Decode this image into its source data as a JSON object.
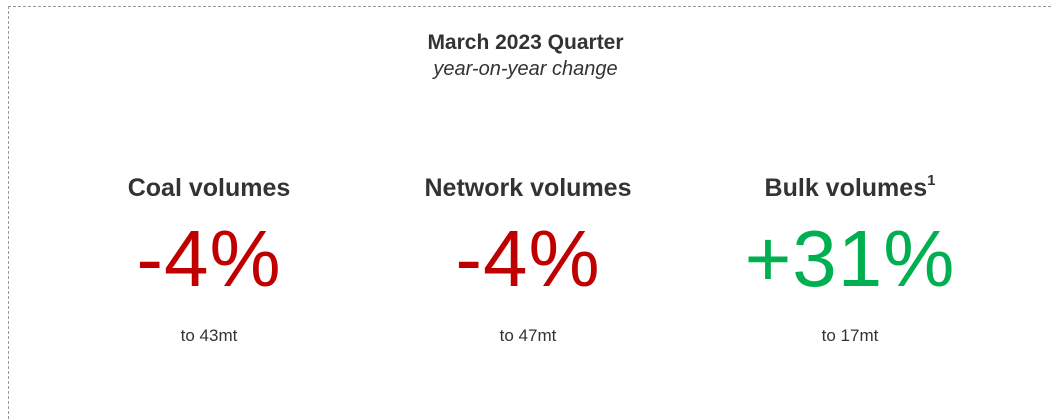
{
  "header": {
    "title": "March 2023 Quarter",
    "subtitle": "year-on-year change"
  },
  "metrics": [
    {
      "label": "Coal volumes",
      "superscript": "",
      "value": "-4%",
      "detail": "to 43mt",
      "color": "#c00000"
    },
    {
      "label": "Network volumes",
      "superscript": "",
      "value": "-4%",
      "detail": "to 47mt",
      "color": "#c00000"
    },
    {
      "label": "Bulk volumes",
      "superscript": "1",
      "value": "+31%",
      "detail": "to 17mt",
      "color": "#00b050"
    }
  ],
  "colors": {
    "negative": "#c00000",
    "positive": "#00b050",
    "text": "#333333",
    "border": "#9a9a9a"
  }
}
